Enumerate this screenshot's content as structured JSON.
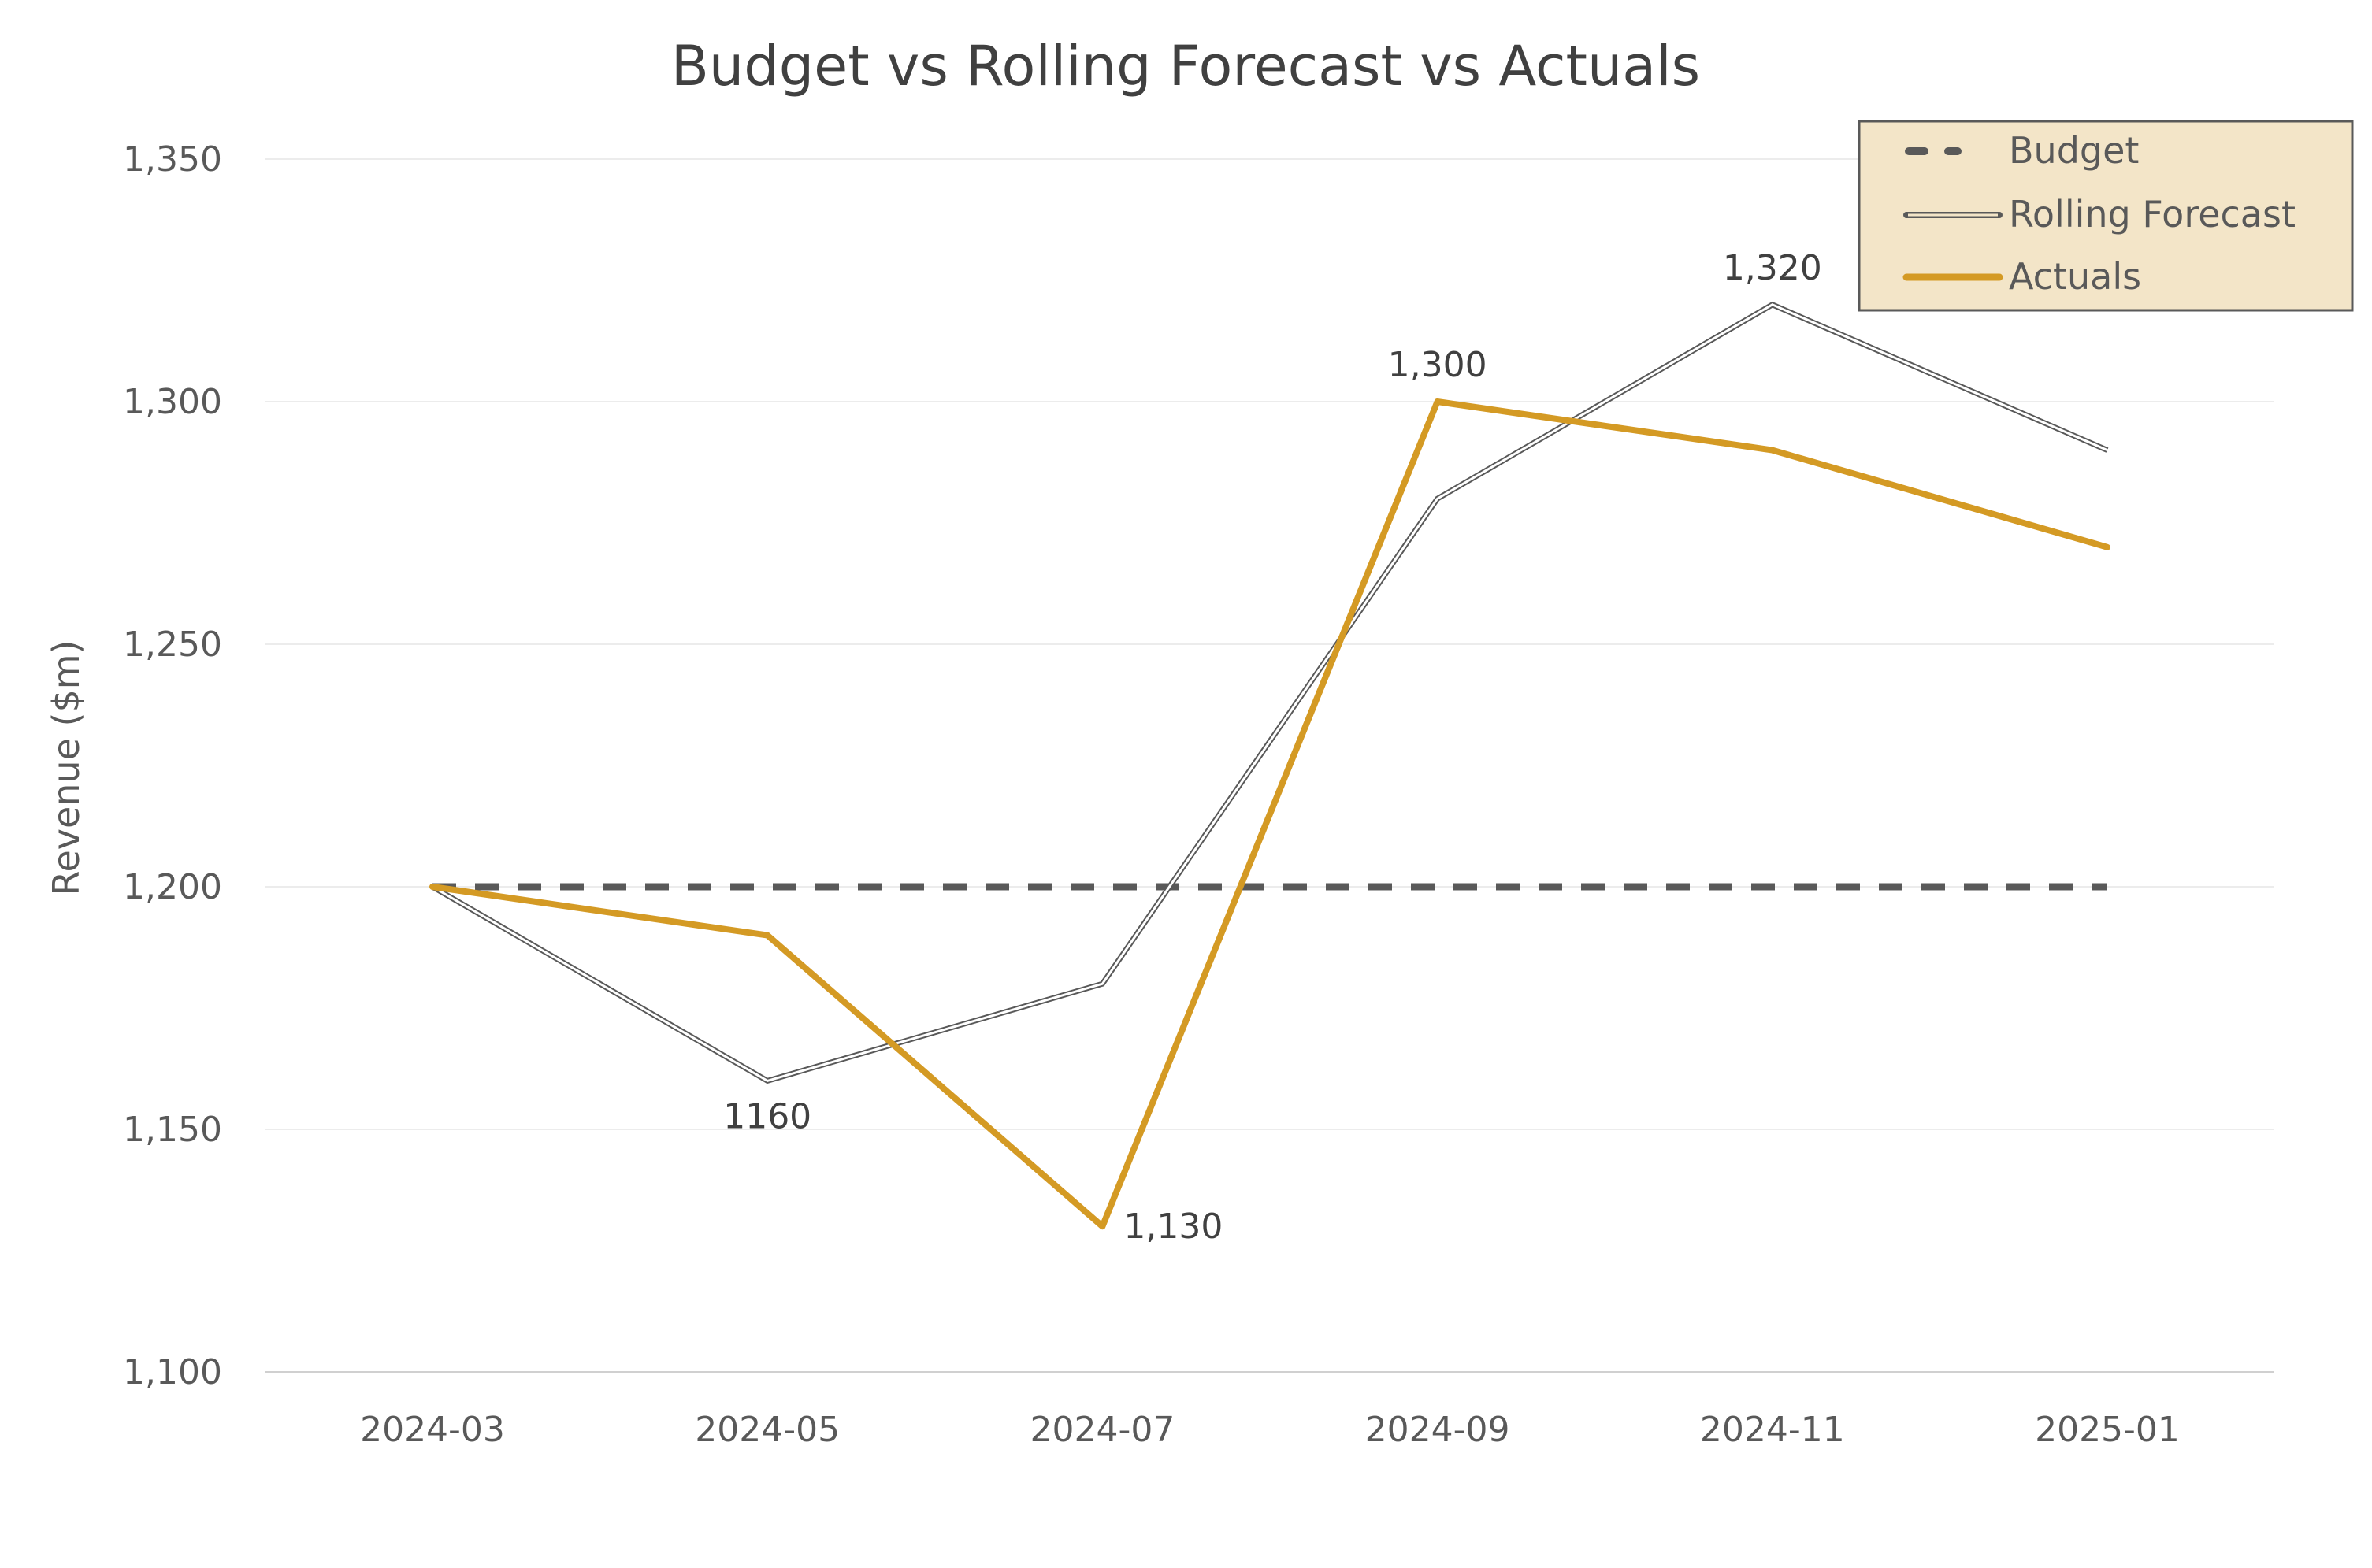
{
  "chart_data": {
    "type": "line",
    "title": "Budget vs Rolling Forecast vs Actuals",
    "xlabel": "",
    "ylabel": "Revenue ($m)",
    "categories": [
      "2024-03",
      "2024-05",
      "2024-07",
      "2024-09",
      "2024-11",
      "2025-01"
    ],
    "ylim": [
      1100,
      1350
    ],
    "yticks": [
      1100,
      1150,
      1200,
      1250,
      1300,
      1350
    ],
    "ytick_labels": [
      "1,100",
      "1,150",
      "1,200",
      "1,250",
      "1,300",
      "1,350"
    ],
    "grid": "horizontal",
    "legend_position": "top-right",
    "series": [
      {
        "name": "Budget",
        "values": [
          1200,
          1200,
          1200,
          1200,
          1200,
          1200
        ],
        "color": "#595959",
        "style": "dashed"
      },
      {
        "name": "Rolling Forecast",
        "values": [
          1200,
          1160,
          1180,
          1280,
          1320,
          1290
        ],
        "color": "#595959",
        "style": "double"
      },
      {
        "name": "Actuals",
        "values": [
          1200,
          1190,
          1130,
          1300,
          1290,
          1270
        ],
        "color": "#D49A24",
        "style": "solid"
      }
    ],
    "annotations": [
      {
        "text": "1160",
        "series": "Rolling Forecast",
        "category": "2024-05",
        "value": 1160,
        "position": "below"
      },
      {
        "text": "1,130",
        "series": "Actuals",
        "category": "2024-07",
        "value": 1130,
        "position": "right"
      },
      {
        "text": "1,300",
        "series": "Actuals",
        "category": "2024-09",
        "value": 1300,
        "position": "above"
      },
      {
        "text": "1,320",
        "series": "Rolling Forecast",
        "category": "2024-11",
        "value": 1320,
        "position": "above"
      }
    ],
    "legend_background": "#F3E5C8"
  }
}
